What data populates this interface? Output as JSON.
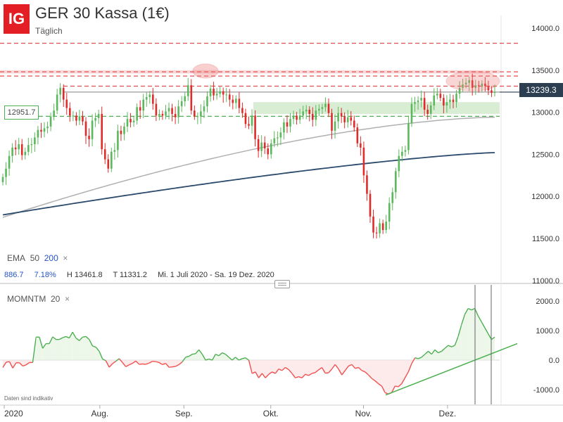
{
  "header": {
    "logo": "IG",
    "title": "GER 30 Kassa (1€)",
    "subtitle": "Täglich"
  },
  "indicator_ema": {
    "name": "EMA",
    "period1": "50",
    "period2": "200",
    "close": "×"
  },
  "stats": {
    "change": "886.7",
    "change_pct": "7.18%",
    "high": "H 13461.8",
    "low": "T 11331.2",
    "range": "Mi. 1 Juli 2020 - Sa. 19 Dez. 2020"
  },
  "indicator_momentum": {
    "name": "MOMNTM",
    "period": "20",
    "close": "×"
  },
  "disclaimer": "Daten sind indikativ",
  "current_price": "13239.3",
  "level_label": "12951.7",
  "colors": {
    "up": "#5cb85c",
    "down": "#e02b2b",
    "ema50": "#b0b0b0",
    "ema200": "#2c4a6b",
    "momentum_up": "#4caf50",
    "momentum_down": "#f05050",
    "resistance": "#e05050",
    "support": "#4caf50"
  },
  "chart_data": [
    {
      "type": "candlestick",
      "series_name": "GER 30 Kassa (1€)",
      "y_ticks": [
        "14000.0",
        "13500.0",
        "13000.0",
        "12500.0",
        "12000.0",
        "11500.0",
        "11000.0"
      ],
      "y_tick_values": [
        14000,
        13500,
        13000,
        12500,
        12000,
        11500,
        11000
      ],
      "ylim": [
        10990,
        14150
      ],
      "x_labels": [
        "2020",
        "Aug.",
        "Sep.",
        "Okt.",
        "Nov.",
        "Dez."
      ],
      "x_label_dates": [
        "2020-07-01",
        "2020-08-03",
        "2020-09-01",
        "2020-10-01",
        "2020-11-02",
        "2020-12-01"
      ],
      "x_range": [
        "2020-07-01",
        "2020-12-19"
      ],
      "closes": [
        12230,
        12330,
        12480,
        12580,
        12560,
        12620,
        12490,
        12530,
        12610,
        12620,
        12700,
        12790,
        12770,
        12810,
        12830,
        12950,
        13020,
        13210,
        13290,
        13150,
        13050,
        12960,
        12960,
        12900,
        12950,
        12890,
        12720,
        12680,
        12900,
        12930,
        12980,
        12560,
        12440,
        12330,
        12530,
        12550,
        12780,
        12740,
        12830,
        12920,
        12880,
        12900,
        13060,
        13020,
        13150,
        13180,
        13210,
        13100,
        12960,
        12980,
        12960,
        13010,
        13050,
        12980,
        12940,
        13070,
        13130,
        13190,
        13320,
        13020,
        12950,
        12950,
        13010,
        13070,
        13190,
        13280,
        13200,
        13220,
        13250,
        13210,
        13210,
        13150,
        13110,
        13160,
        13050,
        12990,
        12860,
        12840,
        12960,
        12680,
        12540,
        12640,
        12570,
        12500,
        12630,
        12690,
        12700,
        12760,
        12880,
        12830,
        12920,
        12960,
        12910,
        12960,
        13010,
        13030,
        12980,
        12910,
        13020,
        13040,
        13060,
        13100,
        12990,
        12780,
        12890,
        12990,
        12950,
        12880,
        12940,
        12900,
        12820,
        12630,
        12580,
        12250,
        12030,
        11760,
        11570,
        11560,
        11680,
        11600,
        11700,
        11920,
        12050,
        12300,
        12480,
        12530,
        12550,
        12870,
        13100,
        13120,
        13140,
        13170,
        13030,
        12980,
        13080,
        13200,
        13220,
        13170,
        13080,
        13120,
        13150,
        13120,
        13220,
        13290,
        13330,
        13350,
        13380,
        13290,
        13320,
        13310,
        13340,
        13310,
        13260,
        13230,
        13240
      ],
      "ema50_start": 11750,
      "ema50_end": 12940,
      "ema200_start": 11780,
      "ema200_end": 12520,
      "resistance_levels": [
        13820,
        13480,
        13430,
        13310,
        13240
      ],
      "support_levels": [
        12951.7
      ],
      "resistance_zone": [
        13460,
        13500
      ],
      "support_zone": [
        12980,
        13120
      ],
      "current_price": 13239.3
    },
    {
      "type": "line",
      "series_name": "MOMNTM 20",
      "y_ticks": [
        "2000.0",
        "1000.0",
        "0.0",
        "-1000.0"
      ],
      "y_tick_values": [
        2000,
        1000,
        0,
        -1000
      ],
      "ylim": [
        -1500,
        2550
      ],
      "values": [
        -250,
        -70,
        -50,
        -270,
        -90,
        -90,
        -200,
        -160,
        -80,
        -80,
        780,
        780,
        400,
        560,
        560,
        790,
        700,
        700,
        760,
        800,
        750,
        950,
        750,
        660,
        780,
        800,
        700,
        480,
        440,
        300,
        40,
        -20,
        -240,
        -120,
        -40,
        50,
        -80,
        -220,
        -160,
        -110,
        -30,
        -140,
        -130,
        -140,
        -100,
        -40,
        -50,
        -80,
        -150,
        -110,
        -240,
        -230,
        -210,
        -150,
        -60,
        100,
        130,
        200,
        220,
        350,
        200,
        0,
        40,
        0,
        200,
        150,
        250,
        200,
        100,
        0,
        100,
        0,
        50,
        80,
        0,
        -450,
        -400,
        -600,
        -450,
        -600,
        -480,
        -400,
        -450,
        -300,
        -350,
        -250,
        -320,
        -450,
        -600,
        -560,
        -600,
        -480,
        -520,
        -450,
        -420,
        -330,
        -250,
        -440,
        -430,
        -300,
        -150,
        -300,
        -500,
        -350,
        -200,
        -150,
        -280,
        -250,
        -350,
        -400,
        -500,
        -620,
        -700,
        -800,
        -880,
        -1100,
        -1150,
        -1100,
        -880,
        -900,
        -800,
        -600,
        -400,
        -120,
        80,
        50,
        100,
        200,
        300,
        200,
        350,
        250,
        300,
        400,
        500,
        450,
        500,
        800,
        1200,
        1550,
        1750,
        1700,
        1750,
        1500,
        1300,
        1100,
        900,
        700,
        780
      ],
      "trendline": [
        [
          -1180,
          560
        ],
        [
          740,
          1260
        ]
      ]
    }
  ]
}
